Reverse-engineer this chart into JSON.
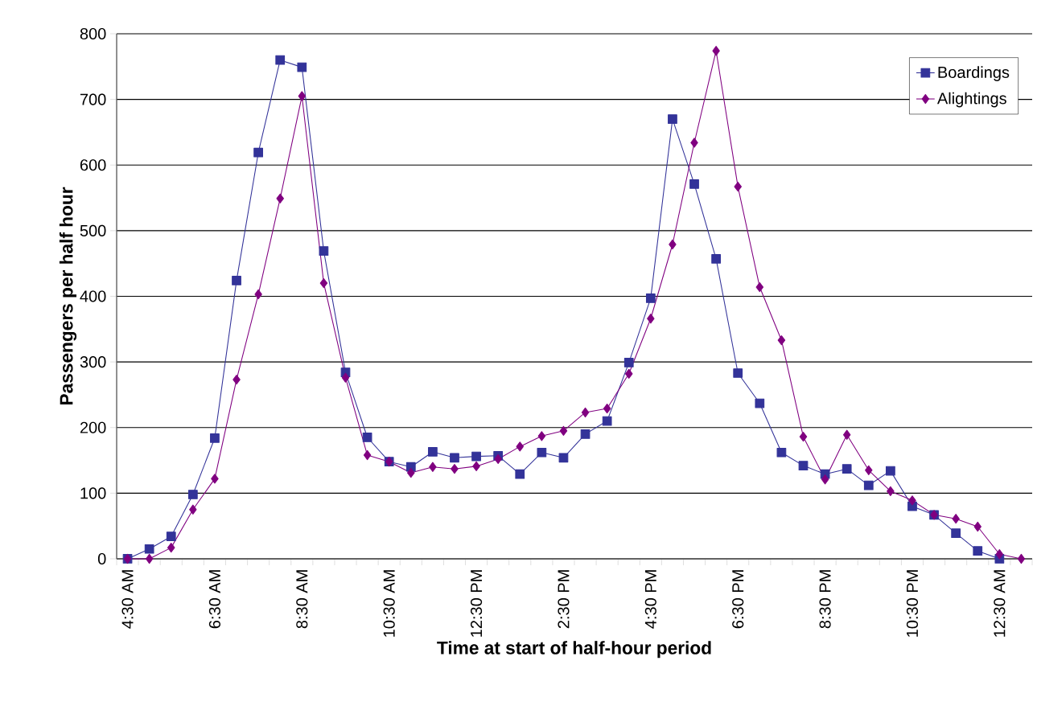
{
  "chart_data": {
    "type": "line",
    "xlabel": "Time at start of half-hour period",
    "ylabel": "Passengers per half hour",
    "categories": [
      "4:30 AM",
      null,
      null,
      null,
      "6:30 AM",
      null,
      null,
      null,
      "8:30 AM",
      null,
      null,
      null,
      "10:30 AM",
      null,
      null,
      null,
      "12:30 PM",
      null,
      null,
      null,
      "2:30 PM",
      null,
      null,
      null,
      "4:30 PM",
      null,
      null,
      null,
      "6:30 PM",
      null,
      null,
      null,
      "8:30 PM",
      null,
      null,
      null,
      "10:30 PM",
      null,
      null,
      null,
      "12:30 AM",
      null
    ],
    "series": [
      {
        "name": "Boardings",
        "color": "#333399",
        "marker": "square",
        "values": [
          0,
          15,
          34,
          98,
          184,
          424,
          619,
          760,
          749,
          469,
          284,
          185,
          148,
          140,
          163,
          154,
          156,
          157,
          129,
          162,
          154,
          190,
          210,
          299,
          397,
          670,
          571,
          457,
          283,
          237,
          162,
          142,
          129,
          137,
          112,
          134,
          80,
          67,
          39,
          12,
          0,
          null
        ]
      },
      {
        "name": "Alightings",
        "color": "#800080",
        "marker": "diamond",
        "values": [
          0,
          0,
          17,
          75,
          122,
          273,
          403,
          549,
          705,
          420,
          276,
          158,
          148,
          131,
          140,
          137,
          141,
          152,
          171,
          187,
          195,
          223,
          229,
          282,
          366,
          479,
          634,
          774,
          567,
          414,
          333,
          186,
          121,
          189,
          135,
          103,
          89,
          67,
          61,
          49,
          7,
          0
        ]
      }
    ],
    "ylim": [
      0,
      800
    ],
    "yticks": [
      0,
      100,
      200,
      300,
      400,
      500,
      600,
      700,
      800
    ],
    "grid": "y",
    "legend": "top right",
    "line_style": "solid"
  }
}
